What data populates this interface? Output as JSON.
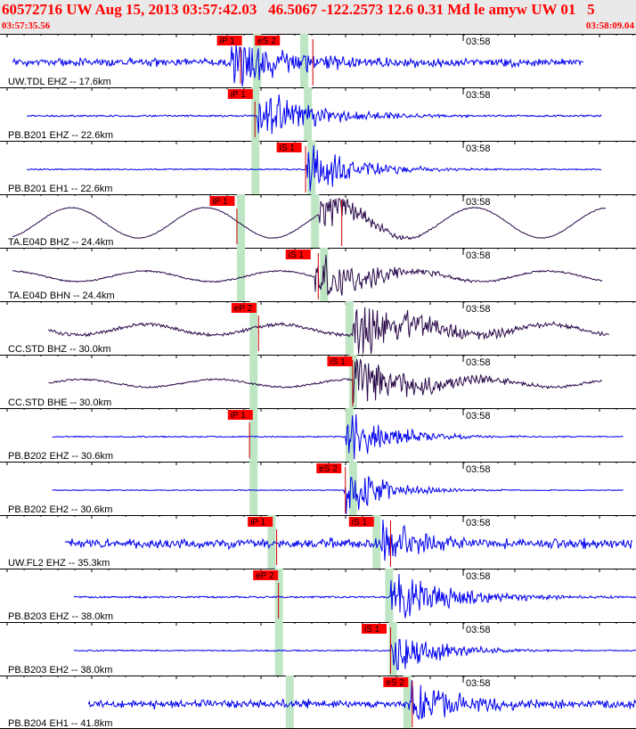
{
  "header": {
    "title": "60572716 UW Aug 15, 2013 03:57:42.03   46.5067 -122.2573 12.6 0.31 Md le amyw UW 01   5",
    "time_start": "03:57:35.56",
    "time_end": "03:58:09.04"
  },
  "colors": {
    "header_text": "#ff0000",
    "header_bg": "#e9e9e9",
    "trace_blue": "#0000ee",
    "trace_purple": "#2a0a4a",
    "pick_box": "#ff0000",
    "pick_line": "#cc0000",
    "band": "#bfe6c4",
    "grid": "#000000"
  },
  "chart_data": {
    "type": "seismogram",
    "x_unit": "time",
    "x_range": [
      "03:57:35.56",
      "03:58:09.04"
    ],
    "tick_label": "03:58",
    "traces": [
      {
        "label": "UW.TDL EHZ -- 17.6km",
        "color": "blue",
        "amp": 1.0,
        "noise": 0.38,
        "p": "iP 1",
        "s": "eS 2",
        "p_band": 14.2,
        "s_band": 16.8,
        "p_box": 12.0,
        "s_box": 14.1,
        "p_line": 13.3,
        "s_line": 17.3,
        "onset": 12.8,
        "decay": 3.5,
        "long": 0,
        "end": 36.0,
        "start": 0.0
      },
      {
        "label": "PB.B201 EHZ -- 22.6km",
        "color": "blue",
        "amp": 1.0,
        "noise": 0.12,
        "p": "iP 1",
        "s": "",
        "p_band": 14.1,
        "s_band": 17.0,
        "p_box": 12.6,
        "s_box": -1,
        "p_line": 14.1,
        "s_line": -1,
        "onset": 14.2,
        "decay": 3.2,
        "long": 0,
        "end": 37.0,
        "start": 0.8
      },
      {
        "label": "PB.B201 EH1 -- 22.6km",
        "color": "blue",
        "amp": 1.0,
        "noise": 0.08,
        "p": "",
        "s": "iS 1",
        "p_band": 14.1,
        "s_band": 17.2,
        "p_box": -1,
        "s_box": 15.3,
        "p_line": -1,
        "s_line": 16.9,
        "onset": 16.9,
        "decay": 2.6,
        "long": 0,
        "end": 37.0,
        "start": 0.8
      },
      {
        "label": "TA.E04D BHZ -- 24.4km",
        "color": "purple",
        "amp": 1.0,
        "noise": 0.06,
        "p": "iP 1",
        "s": "",
        "p_band": 13.3,
        "s_band": 17.4,
        "p_box": 11.6,
        "s_box": -1,
        "p_line": 13.1,
        "s_line": 18.9,
        "onset": 17.6,
        "decay": 1.8,
        "long": 1.0,
        "end": 37.2,
        "start": 0.0
      },
      {
        "label": "TA.E04D BHN -- 24.4km",
        "color": "purple",
        "amp": 1.0,
        "noise": 0.1,
        "p": "",
        "s": "iS 1",
        "p_band": 13.3,
        "s_band": 17.9,
        "p_box": -1,
        "s_box": 15.8,
        "p_line": -1,
        "s_line": 17.6,
        "onset": 17.4,
        "decay": 2.8,
        "long": 0.35,
        "end": 37.0,
        "start": 0.0
      },
      {
        "label": "CC.STD BHZ -- 30.0km",
        "color": "purple",
        "amp": 1.0,
        "noise": 0.22,
        "p": "eP 2",
        "s": "",
        "p_band": 14.0,
        "s_band": 19.3,
        "p_box": 12.8,
        "s_box": -1,
        "p_line": 14.3,
        "s_line": -1,
        "onset": 19.5,
        "decay": 4.0,
        "long": 0.35,
        "end": 37.4,
        "start": 2.0
      },
      {
        "label": "CC.STD BHE -- 30.0km",
        "color": "purple",
        "amp": 1.0,
        "noise": 0.12,
        "p": "",
        "s": "iS 1",
        "p_band": 14.0,
        "s_band": 19.5,
        "p_box": -1,
        "s_box": 18.1,
        "p_line": -1,
        "s_line": 19.5,
        "onset": 19.5,
        "decay": 3.6,
        "long": 0.25,
        "end": 37.0,
        "start": 2.0
      },
      {
        "label": "PB.B202 EHZ -- 30.6km",
        "color": "blue",
        "amp": 1.0,
        "noise": 0.08,
        "p": "iP 1",
        "s": "",
        "p_band": 14.0,
        "s_band": 19.3,
        "p_box": 12.6,
        "s_box": -1,
        "p_line": 13.8,
        "s_line": -1,
        "onset": 19.1,
        "decay": 2.4,
        "long": 0,
        "end": 38.2,
        "start": 2.2
      },
      {
        "label": "PB.B202 EH2 -- 30.6km",
        "color": "blue",
        "amp": 1.0,
        "noise": 0.06,
        "p": "",
        "s": "eS 2",
        "p_band": 14.0,
        "s_band": 19.5,
        "p_box": -1,
        "s_box": 17.5,
        "p_line": -1,
        "s_line": 19.1,
        "onset": 19.0,
        "decay": 2.2,
        "long": 0,
        "end": 38.2,
        "start": 2.2
      },
      {
        "label": "UW.FL2 EHZ -- 35.3km",
        "color": "blue",
        "amp": 1.0,
        "noise": 0.5,
        "p": "iP 1",
        "s": "iS 1",
        "p_band": 15.0,
        "s_band": 20.8,
        "p_box": 13.7,
        "s_box": 19.3,
        "p_line": 15.3,
        "s_line": 21.6,
        "onset": 21.0,
        "decay": 2.0,
        "long": 0,
        "end": 38.7,
        "start": 2.9
      },
      {
        "label": "PB.B203 EHZ -- 38.0km",
        "color": "blue",
        "amp": 1.0,
        "noise": 0.12,
        "p": "eP 2",
        "s": "",
        "p_band": 15.4,
        "s_band": 21.5,
        "p_box": 14.0,
        "s_box": -1,
        "p_line": 15.4,
        "s_line": -1,
        "onset": 21.6,
        "decay": 3.2,
        "long": 0,
        "end": 39.0,
        "start": 3.4
      },
      {
        "label": "PB.B203 EH2 -- 38.0km",
        "color": "blue",
        "amp": 1.0,
        "noise": 0.08,
        "p": "",
        "s": "iS 1",
        "p_band": 15.4,
        "s_band": 21.7,
        "p_box": -1,
        "s_box": 20.0,
        "p_line": -1,
        "s_line": 21.6,
        "onset": 21.6,
        "decay": 2.4,
        "long": 0,
        "end": 39.0,
        "start": 3.4
      },
      {
        "label": "PB.B204 EH1 -- 41.8km",
        "color": "blue",
        "amp": 1.0,
        "noise": 0.4,
        "p": "",
        "s": "eS 2",
        "p_band": 16.0,
        "s_band": 22.5,
        "p_box": -1,
        "s_box": 21.2,
        "p_line": -1,
        "s_line": 22.8,
        "onset": 22.6,
        "decay": 2.4,
        "long": 0,
        "end": 40.0,
        "start": 4.2
      }
    ]
  }
}
